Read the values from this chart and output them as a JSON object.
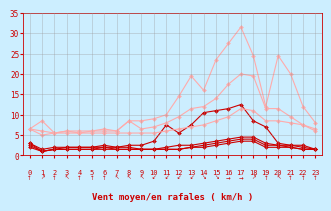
{
  "x": [
    0,
    1,
    2,
    3,
    4,
    5,
    6,
    7,
    8,
    9,
    10,
    11,
    12,
    13,
    14,
    15,
    16,
    17,
    18,
    19,
    20,
    21,
    22,
    23
  ],
  "lines": [
    {
      "y": [
        3.0,
        1.0,
        1.5,
        2.0,
        2.0,
        2.0,
        2.0,
        2.0,
        2.0,
        1.5,
        1.5,
        1.5,
        1.5,
        2.0,
        2.0,
        2.5,
        3.0,
        3.5,
        3.5,
        2.0,
        2.0,
        2.0,
        1.5,
        1.5
      ],
      "color": "#cc0000",
      "lw": 0.8,
      "marker": true
    },
    {
      "y": [
        2.0,
        1.0,
        1.5,
        1.5,
        1.5,
        1.5,
        2.0,
        1.5,
        1.5,
        1.5,
        1.5,
        2.0,
        2.5,
        2.5,
        3.0,
        3.5,
        4.0,
        4.5,
        4.5,
        3.0,
        2.5,
        2.5,
        2.0,
        1.5
      ],
      "color": "#cc0000",
      "lw": 0.8,
      "marker": true
    },
    {
      "y": [
        3.0,
        1.5,
        2.0,
        2.0,
        2.0,
        2.0,
        2.5,
        2.0,
        2.5,
        2.5,
        3.5,
        7.5,
        5.5,
        7.5,
        10.5,
        11.0,
        11.5,
        12.5,
        8.5,
        7.0,
        3.0,
        2.5,
        2.5,
        1.5
      ],
      "color": "#cc0000",
      "lw": 0.8,
      "marker": true
    },
    {
      "y": [
        2.5,
        1.0,
        1.5,
        1.5,
        1.5,
        1.5,
        1.5,
        1.5,
        1.5,
        1.5,
        1.5,
        1.5,
        1.5,
        2.0,
        2.5,
        3.0,
        3.5,
        4.0,
        4.0,
        2.5,
        2.5,
        2.0,
        1.5,
        1.5
      ],
      "color": "#cc0000",
      "lw": 0.8,
      "marker": true
    },
    {
      "y": [
        6.5,
        6.0,
        5.5,
        5.5,
        5.5,
        5.5,
        5.5,
        5.5,
        5.5,
        5.5,
        5.5,
        6.0,
        6.5,
        7.0,
        7.5,
        8.5,
        9.5,
        11.5,
        11.0,
        8.5,
        8.5,
        8.0,
        7.5,
        6.5
      ],
      "color": "#ffaaaa",
      "lw": 0.8,
      "marker": true
    },
    {
      "y": [
        6.5,
        8.5,
        5.5,
        6.0,
        5.5,
        6.0,
        6.5,
        6.0,
        8.5,
        6.5,
        7.0,
        8.0,
        9.5,
        11.5,
        12.0,
        14.0,
        17.5,
        20.0,
        19.5,
        11.5,
        11.5,
        9.5,
        7.5,
        6.0
      ],
      "color": "#ffaaaa",
      "lw": 0.8,
      "marker": true
    },
    {
      "y": [
        6.5,
        5.0,
        5.5,
        6.0,
        6.0,
        6.0,
        6.0,
        6.0,
        8.5,
        8.5,
        9.0,
        10.0,
        14.5,
        19.5,
        16.0,
        23.5,
        27.5,
        31.5,
        24.5,
        12.0,
        24.5,
        20.0,
        12.0,
        8.0
      ],
      "color": "#ffaaaa",
      "lw": 0.8,
      "marker": true
    }
  ],
  "bg_color": "#cceeff",
  "grid_color": "#999999",
  "xlabel": "Vent moyen/en rafales ( km/h )",
  "xlabel_color": "#cc0000",
  "tick_color": "#cc0000",
  "ylim": [
    0,
    35
  ],
  "yticks": [
    0,
    5,
    10,
    15,
    20,
    25,
    30,
    35
  ],
  "xlim": [
    -0.5,
    23.5
  ],
  "xticks": [
    0,
    1,
    2,
    3,
    4,
    5,
    6,
    7,
    8,
    9,
    10,
    11,
    12,
    13,
    14,
    15,
    16,
    17,
    18,
    19,
    20,
    21,
    22,
    23
  ],
  "marker_size": 2.0,
  "arrow_chars": [
    "↑",
    "↗",
    "↑",
    "↖",
    "↑",
    "↑",
    "↑",
    "↖",
    "↖",
    "↖",
    "↙",
    "↙",
    "↙",
    "↙",
    "↘",
    "↘",
    "→",
    "→",
    "↗",
    "↑",
    "↖",
    "↑",
    "↑",
    "↑"
  ]
}
